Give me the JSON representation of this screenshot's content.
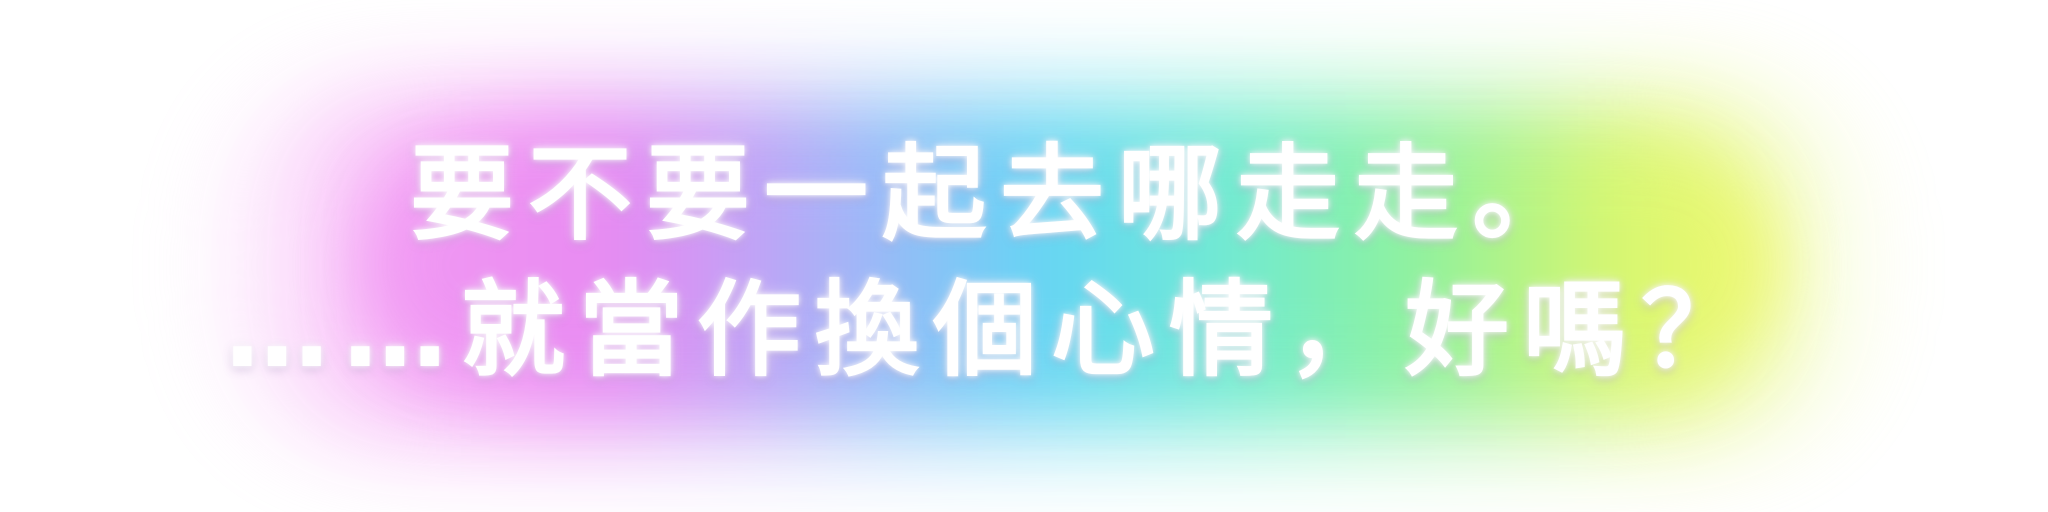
{
  "caption": {
    "line1": "要不要一起去哪走走。",
    "line2": "……就當作換個心情，好嗎？"
  },
  "colors": {
    "text": "#ffffff",
    "glow_gradient": [
      "#ee8df3",
      "#86c3f7",
      "#70def2",
      "#7af0c8",
      "#a2f29b",
      "#e3f67a"
    ]
  }
}
